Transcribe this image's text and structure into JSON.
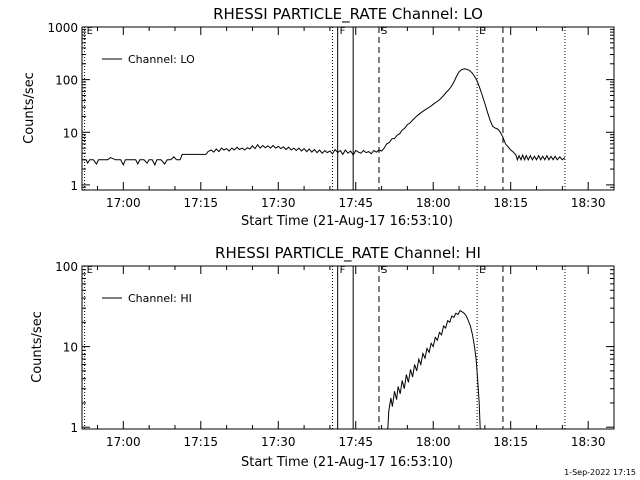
{
  "footer": {
    "timestamp": "1-Sep-2022 17:15"
  },
  "chart_data": [
    {
      "type": "line",
      "title": "RHESSI PARTICLE_RATE Channel: LO",
      "ylabel": "Counts/sec",
      "xlabel": "Start Time (21-Aug-17 16:53:10)",
      "legend": "Channel: LO",
      "yscale": "log",
      "ylim": [
        0.8,
        1000
      ],
      "xlim_minutes": [
        -8,
        95
      ],
      "yticks": [
        {
          "value": 1,
          "label": "1"
        },
        {
          "value": 10,
          "label": "10"
        },
        {
          "value": 100,
          "label": "100"
        },
        {
          "value": 1000,
          "label": "1000"
        }
      ],
      "xticks": [
        {
          "minute": 0,
          "label": "17:00"
        },
        {
          "minute": 15,
          "label": "17:15"
        },
        {
          "minute": 30,
          "label": "17:30"
        },
        {
          "minute": 45,
          "label": "17:45"
        },
        {
          "minute": 60,
          "label": "18:00"
        },
        {
          "minute": 75,
          "label": "18:15"
        },
        {
          "minute": 90,
          "label": "18:30"
        }
      ],
      "markers": [
        {
          "minute": -7.5,
          "style": "dotted",
          "label": "E"
        },
        {
          "minute": 40.5,
          "style": "dotted",
          "label": ""
        },
        {
          "minute": 41.5,
          "style": "solid",
          "label": "F"
        },
        {
          "minute": 44.5,
          "style": "solid",
          "label": ""
        },
        {
          "minute": 49.5,
          "style": "dashed",
          "label": "S"
        },
        {
          "minute": 68.5,
          "style": "dotted",
          "label": "E"
        },
        {
          "minute": 73.5,
          "style": "dashed",
          "label": ""
        },
        {
          "minute": 85.5,
          "style": "dotted",
          "label": ""
        }
      ],
      "series": [
        {
          "name": "Channel: LO",
          "points": [
            [
              -7.9,
              3
            ],
            [
              -7.2,
              3
            ],
            [
              -6.9,
              2.6
            ],
            [
              -6.5,
              3
            ],
            [
              -5.8,
              3
            ],
            [
              -5.2,
              2.5
            ],
            [
              -4.8,
              3
            ],
            [
              -3,
              3
            ],
            [
              -2.5,
              3.3
            ],
            [
              -1.5,
              3
            ],
            [
              -0.5,
              3
            ],
            [
              0,
              2.4
            ],
            [
              0.4,
              3
            ],
            [
              1.5,
              3
            ],
            [
              2.4,
              3
            ],
            [
              2.8,
              2.5
            ],
            [
              3.2,
              3
            ],
            [
              4,
              3
            ],
            [
              4.6,
              2.6
            ],
            [
              5,
              3
            ],
            [
              5.6,
              3
            ],
            [
              6.1,
              2.4
            ],
            [
              6.5,
              3
            ],
            [
              7.3,
              3
            ],
            [
              8,
              2.5
            ],
            [
              8.5,
              3
            ],
            [
              9.2,
              3
            ],
            [
              9.8,
              3.4
            ],
            [
              10.3,
              3
            ],
            [
              11,
              3
            ],
            [
              11.4,
              3.8
            ],
            [
              14,
              3.8
            ],
            [
              16,
              3.8
            ],
            [
              16.4,
              4.3
            ],
            [
              17,
              4.6
            ],
            [
              17.5,
              4.2
            ],
            [
              18,
              4.8
            ],
            [
              18.5,
              4.3
            ],
            [
              19,
              5
            ],
            [
              19.5,
              4.6
            ],
            [
              20,
              4.9
            ],
            [
              20.5,
              4.4
            ],
            [
              21,
              5
            ],
            [
              21.5,
              4.6
            ],
            [
              22,
              5.2
            ],
            [
              22.5,
              4.7
            ],
            [
              23,
              5
            ],
            [
              23.5,
              4.6
            ],
            [
              24,
              5.1
            ],
            [
              24.5,
              4.8
            ],
            [
              25,
              5.5
            ],
            [
              25.5,
              4.9
            ],
            [
              26,
              5.8
            ],
            [
              26.5,
              5
            ],
            [
              27,
              5.6
            ],
            [
              27.5,
              5.1
            ],
            [
              28,
              5.5
            ],
            [
              28.5,
              5
            ],
            [
              29,
              5.6
            ],
            [
              29.5,
              5
            ],
            [
              30,
              5.4
            ],
            [
              30.5,
              4.9
            ],
            [
              31,
              5.3
            ],
            [
              31.5,
              4.7
            ],
            [
              32,
              5.2
            ],
            [
              32.5,
              4.6
            ],
            [
              33,
              5
            ],
            [
              33.5,
              4.5
            ],
            [
              34,
              5
            ],
            [
              34.5,
              4.4
            ],
            [
              35,
              4.9
            ],
            [
              35.5,
              4.3
            ],
            [
              36,
              4.8
            ],
            [
              36.5,
              4.2
            ],
            [
              37,
              4.7
            ],
            [
              37.5,
              4.1
            ],
            [
              38,
              4.6
            ],
            [
              38.5,
              4
            ],
            [
              39,
              4.5
            ],
            [
              39.5,
              4.1
            ],
            [
              40,
              4.4
            ],
            [
              40.5,
              3.9
            ],
            [
              41,
              4.7
            ],
            [
              41.5,
              4.1
            ],
            [
              42,
              4.5
            ],
            [
              42.5,
              3.8
            ],
            [
              43,
              4.6
            ],
            [
              43.5,
              4
            ],
            [
              44,
              4.4
            ],
            [
              44.5,
              3.7
            ],
            [
              45,
              4.5
            ],
            [
              45.5,
              4.2
            ],
            [
              46,
              4
            ],
            [
              46.5,
              4.5
            ],
            [
              47,
              4.1
            ],
            [
              47.5,
              4.3
            ],
            [
              48,
              3.9
            ],
            [
              48.5,
              4.5
            ],
            [
              49,
              4.2
            ],
            [
              49.5,
              4.6
            ],
            [
              50,
              4.4
            ],
            [
              50.5,
              5
            ],
            [
              51,
              6
            ],
            [
              51.5,
              6.4
            ],
            [
              52,
              7.5
            ],
            [
              52.5,
              7.6
            ],
            [
              53,
              8.8
            ],
            [
              53.5,
              9.4
            ],
            [
              54,
              11
            ],
            [
              54.5,
              12
            ],
            [
              55,
              14
            ],
            [
              55.5,
              15
            ],
            [
              56,
              17
            ],
            [
              56.5,
              19
            ],
            [
              57,
              21
            ],
            [
              57.5,
              23
            ],
            [
              58,
              25
            ],
            [
              58.5,
              27
            ],
            [
              59,
              29
            ],
            [
              59.5,
              31
            ],
            [
              60,
              34
            ],
            [
              60.5,
              37
            ],
            [
              61,
              40
            ],
            [
              61.5,
              44
            ],
            [
              62,
              50
            ],
            [
              62.5,
              57
            ],
            [
              63,
              64
            ],
            [
              63.5,
              74
            ],
            [
              64,
              90
            ],
            [
              64.5,
              115
            ],
            [
              65,
              140
            ],
            [
              65.5,
              155
            ],
            [
              66,
              160
            ],
            [
              66.5,
              158
            ],
            [
              67,
              150
            ],
            [
              67.5,
              135
            ],
            [
              68,
              115
            ],
            [
              68.5,
              95
            ],
            [
              69,
              70
            ],
            [
              69.5,
              50
            ],
            [
              70,
              35
            ],
            [
              70.5,
              24
            ],
            [
              71,
              17
            ],
            [
              71.5,
              13
            ],
            [
              72,
              12
            ],
            [
              72.5,
              11.5
            ],
            [
              73,
              10
            ],
            [
              73.5,
              8
            ],
            [
              74,
              6
            ],
            [
              74.5,
              5.3
            ],
            [
              75,
              4.6
            ],
            [
              75.5,
              4.2
            ],
            [
              76,
              3.7
            ],
            [
              76.3,
              3
            ],
            [
              76.6,
              3.6
            ],
            [
              77,
              3
            ],
            [
              77.3,
              3.7
            ],
            [
              77.7,
              3
            ],
            [
              78,
              3.6
            ],
            [
              78.4,
              3
            ],
            [
              78.8,
              3.6
            ],
            [
              79.2,
              3
            ],
            [
              79.6,
              3.5
            ],
            [
              80,
              3
            ],
            [
              80.4,
              3.6
            ],
            [
              80.8,
              3
            ],
            [
              81.2,
              3.5
            ],
            [
              81.6,
              3
            ],
            [
              82,
              3.6
            ],
            [
              82.4,
              3
            ],
            [
              82.8,
              3.5
            ],
            [
              83.2,
              3
            ],
            [
              83.6,
              3.5
            ],
            [
              84,
              3
            ],
            [
              84.5,
              3.4
            ],
            [
              85,
              3
            ],
            [
              85.5,
              3.3
            ]
          ]
        }
      ]
    },
    {
      "type": "line",
      "title": "RHESSI PARTICLE_RATE Channel: HI",
      "ylabel": "Counts/sec",
      "xlabel": "Start Time (21-Aug-17 16:53:10)",
      "legend": "Channel: HI",
      "yscale": "log",
      "ylim": [
        0.95,
        100
      ],
      "xlim_minutes": [
        -8,
        95
      ],
      "yticks": [
        {
          "value": 1,
          "label": "1"
        },
        {
          "value": 10,
          "label": "10"
        },
        {
          "value": 100,
          "label": "100"
        }
      ],
      "xticks": [
        {
          "minute": 0,
          "label": "17:00"
        },
        {
          "minute": 15,
          "label": "17:15"
        },
        {
          "minute": 30,
          "label": "17:30"
        },
        {
          "minute": 45,
          "label": "17:45"
        },
        {
          "minute": 60,
          "label": "18:00"
        },
        {
          "minute": 75,
          "label": "18:15"
        },
        {
          "minute": 90,
          "label": "18:30"
        }
      ],
      "markers": [
        {
          "minute": -7.5,
          "style": "dotted",
          "label": "E"
        },
        {
          "minute": 40.5,
          "style": "dotted",
          "label": ""
        },
        {
          "minute": 41.5,
          "style": "solid",
          "label": "F"
        },
        {
          "minute": 44.5,
          "style": "solid",
          "label": ""
        },
        {
          "minute": 49.5,
          "style": "dashed",
          "label": "S"
        },
        {
          "minute": 68.5,
          "style": "dotted",
          "label": "E"
        },
        {
          "minute": 73.5,
          "style": "dashed",
          "label": ""
        },
        {
          "minute": 85.5,
          "style": "dotted",
          "label": ""
        }
      ],
      "series": [
        {
          "name": "Channel: HI",
          "points": [
            [
              51.2,
              0.95
            ],
            [
              51.4,
              1.6
            ],
            [
              51.8,
              2.3
            ],
            [
              52.1,
              1.8
            ],
            [
              52.5,
              2.8
            ],
            [
              52.9,
              2.2
            ],
            [
              53.2,
              3.2
            ],
            [
              53.6,
              2.6
            ],
            [
              54,
              3.8
            ],
            [
              54.4,
              3
            ],
            [
              54.8,
              4.5
            ],
            [
              55.2,
              3.6
            ],
            [
              55.6,
              5.2
            ],
            [
              56,
              4.2
            ],
            [
              56.4,
              6
            ],
            [
              56.8,
              5
            ],
            [
              57.2,
              7
            ],
            [
              57.6,
              6
            ],
            [
              58,
              8.2
            ],
            [
              58.4,
              7.2
            ],
            [
              58.8,
              9.5
            ],
            [
              59.2,
              8.5
            ],
            [
              59.6,
              11
            ],
            [
              60,
              10
            ],
            [
              60.4,
              13
            ],
            [
              60.8,
              12
            ],
            [
              61.2,
              15
            ],
            [
              61.6,
              14
            ],
            [
              62,
              18
            ],
            [
              62.4,
              17
            ],
            [
              62.8,
              21
            ],
            [
              63.2,
              20
            ],
            [
              63.6,
              24
            ],
            [
              64,
              23
            ],
            [
              64.4,
              26
            ],
            [
              64.8,
              25
            ],
            [
              65.2,
              28
            ],
            [
              65.6,
              27
            ],
            [
              66,
              26
            ],
            [
              66.4,
              24
            ],
            [
              66.8,
              21
            ],
            [
              67.2,
              18
            ],
            [
              67.6,
              14
            ],
            [
              68,
              10
            ],
            [
              68.3,
              7
            ],
            [
              68.6,
              4
            ],
            [
              68.9,
              2
            ],
            [
              69.1,
              0.95
            ]
          ]
        }
      ]
    }
  ]
}
